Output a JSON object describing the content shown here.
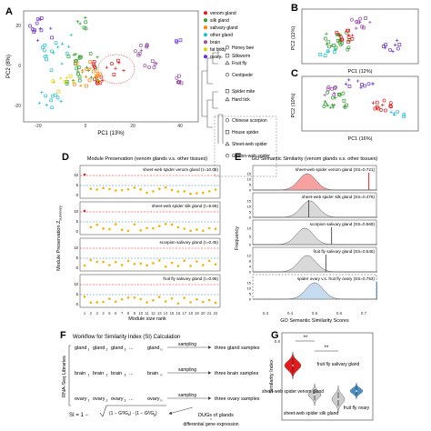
{
  "panels": {
    "A": {
      "letter": "A",
      "xlabel": "PC1 (13%)",
      "ylabel": "PC2 (8%)",
      "xticks": [
        "-20",
        "0",
        "20",
        "40"
      ],
      "yticks": [
        "20",
        "0",
        "-20"
      ],
      "tissue_legend": [
        {
          "label": "venom gland",
          "color": "#e41a1c"
        },
        {
          "label": "silk gland",
          "color": "#2ca02c"
        },
        {
          "label": "salivary gland",
          "color": "#ff7f00"
        },
        {
          "label": "other gland",
          "color": "#17becf"
        },
        {
          "label": "brain",
          "color": "#984ea3"
        },
        {
          "label": "fat body",
          "color": "#e7d000"
        },
        {
          "label": "ovary",
          "color": "#6b2fd6"
        }
      ],
      "species_legend": [
        "Honey bee",
        "Silkworm",
        "Fruit fly",
        "Centipede",
        "Spider mite",
        "Hard tick",
        "Chinese scorpion",
        "House spider",
        "Sheet-web spider",
        "Golden-web spider"
      ]
    },
    "B": {
      "letter": "B",
      "xlabel": "PC1 (12%)",
      "ylabel": "PC2 (11%)"
    },
    "C": {
      "letter": "C",
      "xlabel": "PC1 (16%)",
      "ylabel": "PC2 (10%)"
    },
    "D": {
      "letter": "D",
      "title": "Module Preservation (venom glands v.s. other tissues)",
      "ylabel": "Module Preservation Z",
      "ylabel_sub": "summary",
      "xlabel": "Module size rank",
      "xticks": [
        "1",
        "2",
        "3",
        "4",
        "5",
        "6",
        "7",
        "8",
        "9",
        "10",
        "11",
        "12",
        "13",
        "14",
        "15",
        "16",
        "17",
        "18",
        "19",
        "20",
        "21",
        "22"
      ],
      "subplots": [
        {
          "label": "sheet-web spider venom gland (τ=10.08)",
          "yticks": [
            "10",
            "5",
            "0"
          ]
        },
        {
          "label": "sheet-web spider silk gland (τ=9.68)",
          "yticks": [
            "10",
            "5",
            "0"
          ]
        },
        {
          "label": "scorpion salivary gland (τ=0.45)",
          "yticks": [
            "10",
            "5",
            "0"
          ]
        },
        {
          "label": "fruit fly salivary gland (τ=0.96)",
          "yticks": [
            "10",
            "5",
            "0"
          ]
        }
      ]
    },
    "E": {
      "letter": "E",
      "title": "GO Semantic Similarity (venom glands v.s. other tissues)",
      "ylabel": "Frequency",
      "xlabel": "GO Semantic Similarity Scores",
      "xticks": [
        "0.3",
        "0.4",
        "0.5",
        "0.6",
        "0.7"
      ],
      "subplots": [
        {
          "label": "sheet-web spider venom gland (SS=0.721)",
          "yticks": [
            "15",
            "10",
            "5",
            "0"
          ]
        },
        {
          "label": "sheet-web spider silk gland (SS=0.476)",
          "yticks": [
            "15",
            "10",
            "5",
            "0"
          ]
        },
        {
          "label": "scorpion salivary gland (SS=0.569)",
          "yticks": [
            "10",
            "5",
            "0"
          ]
        },
        {
          "label": "fruit fly salivary gland (SS=0.546)",
          "yticks": [
            "12",
            "8",
            "4",
            "0"
          ]
        },
        {
          "label": "spider ovary v.s. fruit fly ovary (SS=0.753)",
          "yticks": [
            "15",
            "10",
            "5",
            "0"
          ]
        }
      ]
    },
    "F": {
      "letter": "F",
      "title": "Workflow for Similarity Index (SI) Calculation",
      "side_label": "RNA-Seq Libraries",
      "rows": [
        {
          "items": [
            "gland",
            "gland",
            "gland",
            "...",
            "gland"
          ],
          "sampling": "sampling",
          "result": "three gland samples"
        },
        {
          "items": [
            "brain",
            "brain",
            "brain",
            "...",
            "brain"
          ],
          "sampling": "sampling",
          "result": "three brain samples"
        },
        {
          "items": [
            "ovary",
            "ovary",
            "ovary",
            "...",
            "ovary"
          ],
          "sampling": "sampling",
          "result": "three ovary samples"
        }
      ],
      "subscripts": [
        "1",
        "2",
        "3",
        "",
        "n"
      ],
      "formula_prefix": "SI = 1 −",
      "degs_label": "DUGs of glands",
      "diff_label": "differential gene expression"
    },
    "G": {
      "letter": "G",
      "ylabel": "Similarity Index",
      "yticks": [
        "0.8",
        "0.6",
        "0.4",
        "0.2",
        "0.0"
      ],
      "sig1": "**",
      "sig2": "**",
      "labels": [
        "sheet-web spider venom gland",
        "sheet-web spider silk gland",
        "fruit fly salivary gland",
        "fruit fly ovary"
      ]
    }
  }
}
